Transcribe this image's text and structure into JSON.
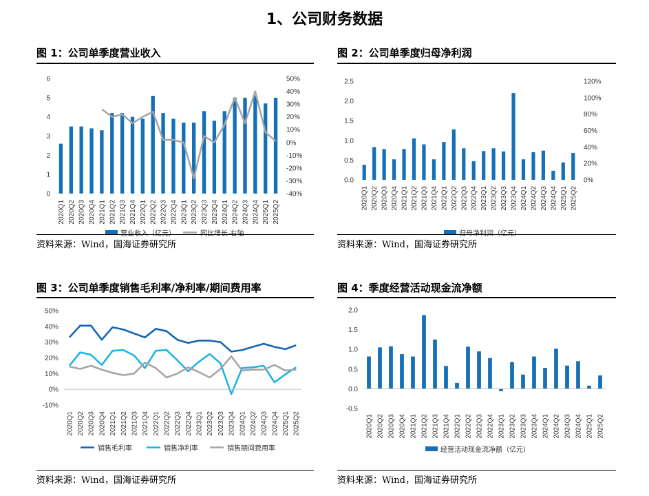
{
  "page_title": "1、公司财务数据",
  "colors": {
    "blue": "#1570b8",
    "gray": "#a6a6a6",
    "cyan": "#1fb3e6",
    "darkblue": "#1466b0"
  },
  "panels": [
    {
      "title": "图 1：公司单季度营业收入",
      "source": "资料来源：Wind，国海证券研究所"
    },
    {
      "title": "图 2：公司单季度归母净利润",
      "source": "资料来源：Wind，国海证券研究所"
    },
    {
      "title": "图 3：公司单季度销售毛利率/净利率/期间费用率",
      "source": "资料来源：Wind，国海证券研究所"
    },
    {
      "title": "图 4：季度经营活动现金流净额",
      "source": "资料来源：Wind，国海证券研究所"
    }
  ],
  "chart_data": [
    {
      "type": "bar",
      "title": "公司单季度营业收入",
      "categories": [
        "2020Q1",
        "2020Q2",
        "2020Q3",
        "2020Q4",
        "2021Q1",
        "2021Q2",
        "2021Q3",
        "2021Q4",
        "2022Q1",
        "2022Q2",
        "2022Q3",
        "2022Q4",
        "2023Q1",
        "2023Q2",
        "2023Q3",
        "2023Q4",
        "2024Q1",
        "2024Q2",
        "2024Q3",
        "2024Q4",
        "2025Q1",
        "2025Q2"
      ],
      "series": [
        {
          "name": "营业收入（亿元）",
          "kind": "bar",
          "axis": "left",
          "values": [
            2.6,
            3.5,
            3.5,
            3.4,
            3.3,
            4.2,
            4.2,
            4.0,
            3.9,
            5.1,
            4.2,
            3.9,
            3.7,
            3.7,
            4.3,
            3.8,
            4.3,
            5.0,
            5.0,
            5.1,
            4.7,
            5.0
          ]
        },
        {
          "name": "同比增长-右轴",
          "kind": "line",
          "axis": "right",
          "values": [
            null,
            null,
            null,
            null,
            26,
            20,
            22,
            15,
            20,
            24,
            2,
            2,
            0,
            -28,
            5,
            0,
            14,
            35,
            15,
            40,
            8,
            1
          ]
        }
      ],
      "left_axis": {
        "range": [
          0,
          6
        ],
        "ticks": [
          "0",
          "1",
          "2",
          "3",
          "4",
          "5",
          "6"
        ]
      },
      "right_axis": {
        "range": [
          -40,
          50
        ],
        "ticks": [
          "-40%",
          "-30%",
          "-20%",
          "-10%",
          "0%",
          "10%",
          "20%",
          "30%",
          "40%",
          "50%"
        ]
      }
    },
    {
      "type": "bar",
      "title": "公司单季度归母净利润",
      "categories": [
        "2020Q1",
        "2020Q2",
        "2020Q3",
        "2020Q4",
        "2021Q1",
        "2021Q2",
        "2021Q3",
        "2021Q4",
        "2022Q1",
        "2022Q2",
        "2022Q3",
        "2022Q4",
        "2023Q1",
        "2023Q2",
        "2023Q3",
        "2023Q4",
        "2024Q1",
        "2024Q2",
        "2024Q3",
        "2024Q4",
        "2025Q1",
        "2025Q2"
      ],
      "series": [
        {
          "name": "归母净利润（亿元）",
          "kind": "bar",
          "axis": "left",
          "values": [
            0.38,
            0.83,
            0.78,
            0.52,
            0.78,
            1.05,
            0.9,
            0.52,
            0.96,
            1.28,
            0.8,
            0.47,
            0.73,
            0.8,
            0.72,
            2.2,
            0.52,
            0.7,
            0.74,
            0.23,
            0.44,
            0.68
          ]
        }
      ],
      "left_axis": {
        "range": [
          0,
          2.5
        ],
        "ticks": [
          "0.0",
          "0.5",
          "1.0",
          "1.5",
          "2.0",
          "2.5"
        ]
      },
      "right_axis": {
        "range": [
          0,
          120
        ],
        "ticks": [
          "0%",
          "20%",
          "40%",
          "60%",
          "80%",
          "100%",
          "120%"
        ]
      }
    },
    {
      "type": "line",
      "title": "公司单季度销售毛利率/净利率/期间费用率",
      "categories": [
        "2020Q1",
        "2020Q2",
        "2020Q3",
        "2020Q4",
        "2021Q1",
        "2021Q2",
        "2021Q3",
        "2021Q4",
        "2022Q1",
        "2022Q2",
        "2022Q3",
        "2022Q4",
        "2023Q1",
        "2023Q2",
        "2023Q3",
        "2023Q4",
        "2024Q1",
        "2024Q2",
        "2024Q3",
        "2024Q4",
        "2025Q1",
        "2025Q2"
      ],
      "series": [
        {
          "name": "销售毛利率",
          "color": "darkblue",
          "values": [
            33,
            40.5,
            40.5,
            31.5,
            39.5,
            38,
            35.5,
            33,
            38.5,
            37,
            31.5,
            29.5,
            31,
            31,
            30,
            24,
            25,
            27,
            29,
            27,
            25.5,
            28
          ]
        },
        {
          "name": "销售净利率",
          "color": "cyan",
          "values": [
            15,
            23.5,
            22,
            15.5,
            24.5,
            25,
            21.5,
            13.5,
            24.5,
            25,
            18.5,
            11.5,
            17.5,
            22.5,
            16.5,
            -3,
            13.5,
            14,
            15,
            4.5,
            9.5,
            14
          ]
        },
        {
          "name": "销售期间费用率",
          "color": "gray",
          "values": [
            14.5,
            13,
            15,
            12.5,
            10.5,
            9,
            10,
            17,
            13.5,
            7.5,
            10,
            14,
            11,
            7.5,
            13,
            21,
            12,
            12.5,
            12.5,
            15.5,
            12,
            12.5
          ]
        }
      ],
      "left_axis": {
        "range": [
          -10,
          50
        ],
        "ticks": [
          "-10%",
          "0%",
          "10%",
          "20%",
          "30%",
          "40%",
          "50%"
        ]
      }
    },
    {
      "type": "bar",
      "title": "季度经营活动现金流净额",
      "categories": [
        "2020Q1",
        "2020Q2",
        "2020Q3",
        "2020Q4",
        "2021Q1",
        "2021Q2",
        "2021Q3",
        "2021Q4",
        "2022Q1",
        "2022Q2",
        "2022Q3",
        "2022Q4",
        "2023Q1",
        "2023Q2",
        "2023Q3",
        "2023Q4",
        "2024Q1",
        "2024Q2",
        "2024Q3",
        "2024Q4",
        "2025Q1",
        "2025Q2"
      ],
      "series": [
        {
          "name": "经营活动现金流净额（亿元）",
          "kind": "bar",
          "axis": "left",
          "values": [
            0.82,
            1.05,
            1.08,
            0.88,
            0.82,
            1.87,
            1.25,
            0.58,
            0.15,
            1.07,
            0.95,
            0.78,
            -0.06,
            0.68,
            0.36,
            0.82,
            0.53,
            1.02,
            0.59,
            0.7,
            0.08,
            0.34
          ]
        }
      ],
      "left_axis": {
        "range": [
          -0.5,
          2.0
        ],
        "ticks": [
          "-0.5",
          "0.0",
          "0.5",
          "1.0",
          "1.5",
          "2.0"
        ]
      }
    }
  ]
}
